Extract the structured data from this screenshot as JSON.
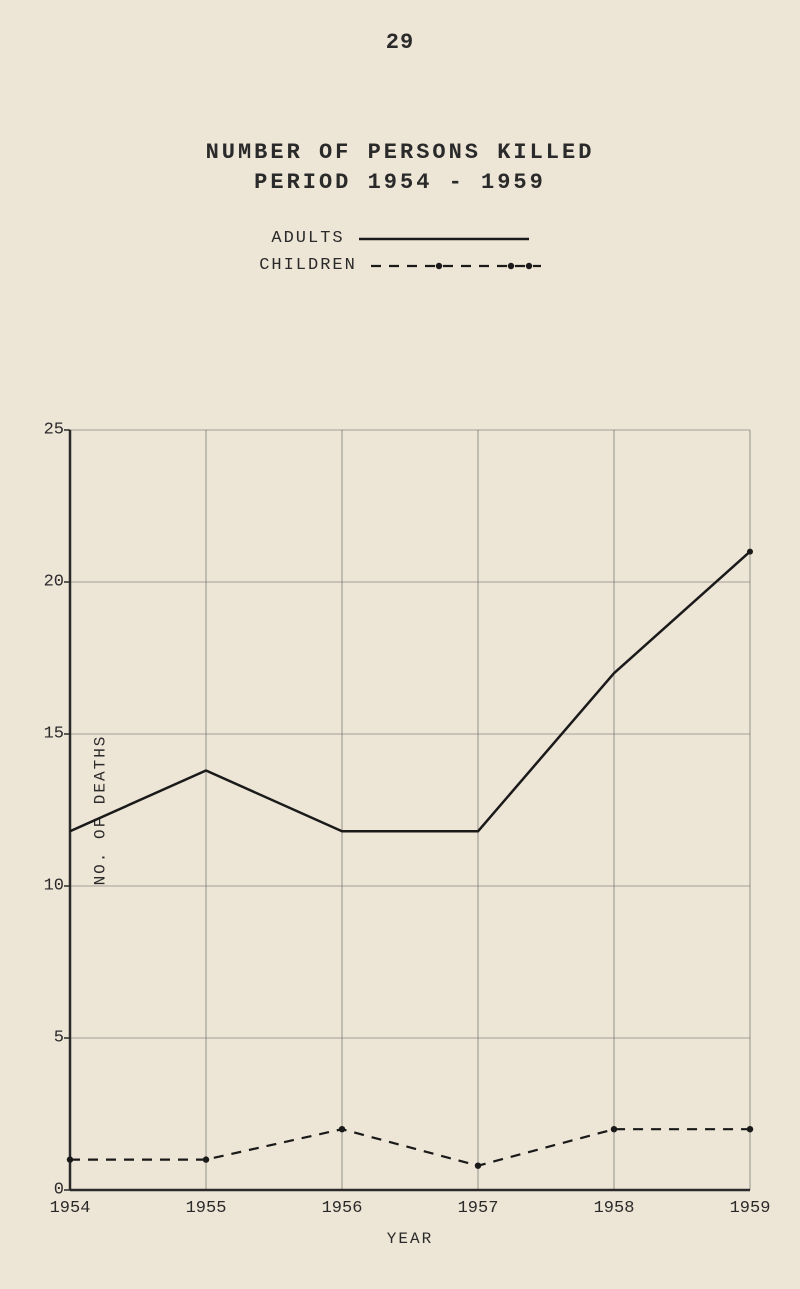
{
  "page_number": "29",
  "title_line1": "NUMBER OF PERSONS KILLED",
  "title_line2": "PERIOD 1954 - 1959",
  "legend": {
    "adults_label": "ADULTS",
    "children_label": "CHILDREN"
  },
  "chart": {
    "type": "line",
    "background_color": "#ede5d6",
    "axis_color": "#2a2a2a",
    "grid_color": "#5a5a5a",
    "grid_width": 0.6,
    "axis_width": 2.5,
    "xlabel": "YEAR",
    "ylabel": "NO. OF DEATHS",
    "label_fontsize": 16,
    "tick_fontsize": 17,
    "xlim": [
      1954,
      1959
    ],
    "ylim": [
      0,
      25
    ],
    "xticks": [
      1954,
      1955,
      1956,
      1957,
      1958,
      1959
    ],
    "yticks": [
      0,
      5,
      10,
      15,
      20,
      25
    ],
    "ytick_tickmark": true,
    "series": {
      "adults": {
        "style": "solid",
        "color": "#1a1a1a",
        "width": 2.5,
        "marker": "none",
        "x": [
          1954,
          1955,
          1956,
          1957,
          1958,
          1959
        ],
        "y": [
          11.8,
          13.8,
          11.8,
          11.8,
          17.0,
          21.0
        ]
      },
      "children": {
        "style": "dashed",
        "dash": "10,8",
        "color": "#1a1a1a",
        "width": 2.2,
        "marker": "dot",
        "marker_size": 3.2,
        "x": [
          1954,
          1955,
          1956,
          1957,
          1958,
          1959
        ],
        "y": [
          1.0,
          1.0,
          2.0,
          0.8,
          2.0,
          2.0
        ]
      }
    },
    "legend_line_length": 170
  }
}
